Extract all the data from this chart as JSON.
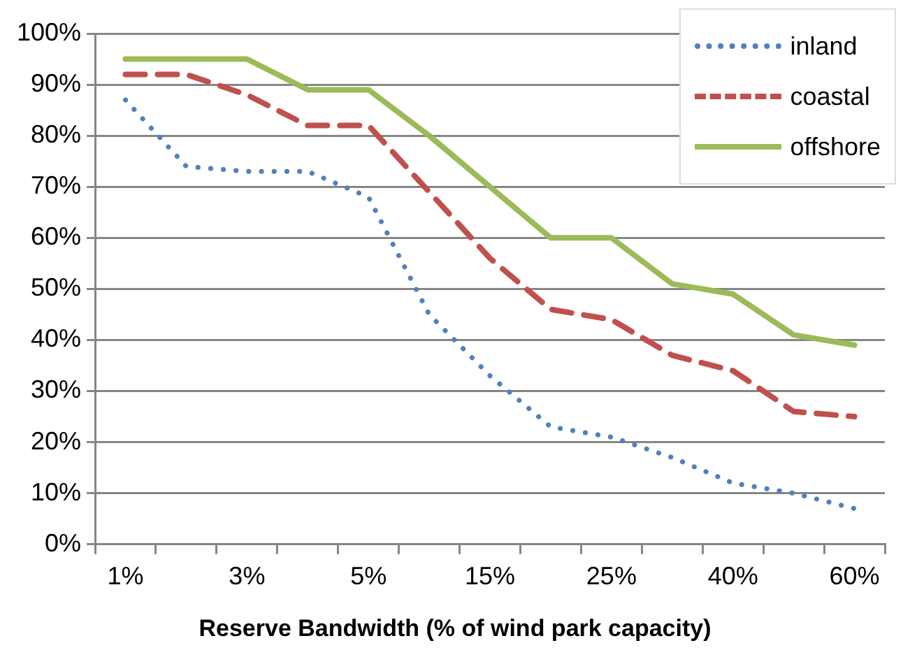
{
  "chart_data": {
    "type": "line",
    "xlabel": "Reserve Bandwidth (% of wind park capacity)",
    "categories": [
      "1%",
      null,
      "3%",
      null,
      "5%",
      null,
      "15%",
      null,
      "25%",
      null,
      "40%",
      null,
      "60%"
    ],
    "series": [
      {
        "name": "inland",
        "color": "#4f81bd",
        "line_style": "dotted",
        "values": [
          87,
          74,
          73,
          73,
          68,
          45,
          33,
          23,
          21,
          17,
          12,
          10,
          7
        ]
      },
      {
        "name": "coastal",
        "color": "#c0504d",
        "line_style": "dashed",
        "values": [
          92,
          92,
          88,
          82,
          82,
          69,
          56,
          46,
          44,
          37,
          34,
          26,
          25
        ]
      },
      {
        "name": "offshore",
        "color": "#9bbb59",
        "line_style": "solid",
        "values": [
          95,
          95,
          95,
          89,
          89,
          80,
          70,
          60,
          60,
          51,
          49,
          41,
          39
        ]
      }
    ],
    "ylim": [
      0,
      100
    ],
    "yticks": [
      {
        "value": 0,
        "label": "0%"
      },
      {
        "value": 10,
        "label": "10%"
      },
      {
        "value": 20,
        "label": "20%"
      },
      {
        "value": 30,
        "label": "30%"
      },
      {
        "value": 40,
        "label": "40%"
      },
      {
        "value": 50,
        "label": "50%"
      },
      {
        "value": 60,
        "label": "60%"
      },
      {
        "value": 70,
        "label": "70%"
      },
      {
        "value": 80,
        "label": "80%"
      },
      {
        "value": 90,
        "label": "90%"
      },
      {
        "value": 100,
        "label": "100%"
      }
    ],
    "grid": "y",
    "legend": "top right",
    "marker": "none"
  }
}
